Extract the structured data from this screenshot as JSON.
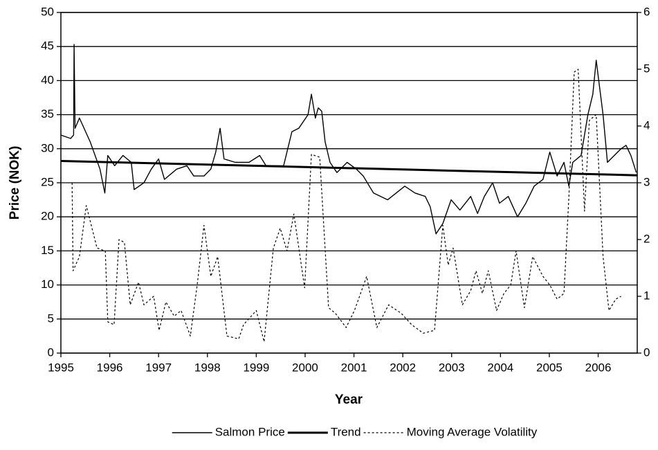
{
  "chart_data": {
    "type": "line",
    "x_label": "Year",
    "y_label": "Price (NOK)",
    "xlim": [
      1995,
      2006.8
    ],
    "xticks": [
      1995,
      1996,
      1997,
      1998,
      1999,
      2000,
      2001,
      2002,
      2003,
      2004,
      2005,
      2006
    ],
    "ylim": [
      0,
      50
    ],
    "yticks": [
      0,
      5,
      10,
      15,
      20,
      25,
      30,
      35,
      40,
      45,
      50
    ],
    "y2lim": [
      0,
      6
    ],
    "y2ticks": [
      0,
      1,
      2,
      3,
      4,
      5,
      6
    ],
    "grid": true,
    "legend": "bottom",
    "series": [
      {
        "name": "Salmon Price",
        "color": "#000000",
        "style": "solid",
        "x": [
          1995,
          1995.2,
          1995.26,
          1995.27,
          1995.29,
          1995.38,
          1995.6,
          1995.8,
          1995.9,
          1995.96,
          1996.1,
          1996.27,
          1996.44,
          1996.5,
          1996.7,
          1996.85,
          1997.0,
          1997.12,
          1997.37,
          1997.58,
          1997.72,
          1997.93,
          1998.07,
          1998.17,
          1998.26,
          1998.34,
          1998.57,
          1998.85,
          1999.07,
          1999.2,
          1999.56,
          1999.73,
          1999.87,
          2000.06,
          2000.13,
          2000.21,
          2000.27,
          2000.34,
          2000.41,
          2000.51,
          2000.65,
          2000.86,
          2001.05,
          2001.19,
          2001.4,
          2001.69,
          2002.04,
          2002.25,
          2002.46,
          2002.56,
          2002.68,
          2002.82,
          2002.99,
          2003.17,
          2003.39,
          2003.53,
          2003.67,
          2003.84,
          2003.98,
          2004.16,
          2004.35,
          2004.52,
          2004.69,
          2004.87,
          2005.01,
          2005.16,
          2005.3,
          2005.4,
          2005.48,
          2005.65,
          2005.79,
          2005.89,
          2005.96,
          2006.03,
          2006.1,
          2006.19,
          2006.33,
          2006.47,
          2006.57,
          2006.67,
          2006.78
        ],
        "values": [
          32,
          31.5,
          32,
          45.3,
          33,
          34.5,
          31,
          27,
          23.5,
          29,
          27.5,
          29,
          28,
          24,
          25,
          27,
          28.5,
          25.5,
          27,
          27.5,
          26,
          26,
          27,
          29.5,
          33,
          28.5,
          28,
          28,
          29,
          27.5,
          27.5,
          32.5,
          33,
          35,
          38,
          34.5,
          36,
          35.5,
          31,
          28,
          26.5,
          28,
          27,
          26,
          23.5,
          22.5,
          24.5,
          23.5,
          23,
          21.5,
          17.5,
          19,
          22.5,
          21,
          23,
          20.5,
          23,
          25,
          22,
          23,
          20,
          22,
          24.5,
          25.5,
          29.5,
          26,
          28,
          24.5,
          28,
          29,
          35,
          38,
          43,
          39,
          35,
          28,
          29,
          30,
          30.5,
          29,
          26.5
        ]
      },
      {
        "name": "Trend",
        "color": "#000000",
        "style": "thick",
        "x": [
          1995,
          2006.8
        ],
        "values": [
          28.2,
          26.1
        ]
      },
      {
        "name": "Moving Average Volatility",
        "color": "#000000",
        "style": "dashed",
        "axis": "y2",
        "x": [
          1995.23,
          1995.25,
          1995.38,
          1995.52,
          1995.74,
          1995.91,
          1995.96,
          1996.09,
          1996.19,
          1996.3,
          1996.42,
          1996.59,
          1996.7,
          1996.9,
          1997.01,
          1997.15,
          1997.32,
          1997.46,
          1997.65,
          1997.79,
          1997.93,
          1998.07,
          1998.21,
          1998.4,
          1998.64,
          1998.74,
          1999.0,
          1999.16,
          1999.35,
          1999.49,
          1999.63,
          1999.77,
          1999.99,
          2000.13,
          2000.3,
          2000.48,
          2000.62,
          2000.84,
          2001.01,
          2001.26,
          2001.47,
          2001.71,
          2001.97,
          2002.18,
          2002.42,
          2002.65,
          2002.82,
          2002.93,
          2003.03,
          2003.22,
          2003.39,
          2003.5,
          2003.63,
          2003.75,
          2003.92,
          2004.07,
          2004.21,
          2004.32,
          2004.49,
          2004.66,
          2004.87,
          2005.01,
          2005.16,
          2005.3,
          2005.4,
          2005.51,
          2005.59,
          2005.72,
          2005.82,
          2005.96,
          2006.1,
          2006.22,
          2006.36,
          2006.47
        ],
        "values": [
          3.0,
          1.45,
          1.7,
          2.6,
          1.85,
          1.8,
          0.55,
          0.5,
          2.0,
          1.95,
          0.85,
          1.25,
          0.85,
          1.0,
          0.4,
          0.9,
          0.65,
          0.75,
          0.3,
          1.2,
          2.25,
          1.35,
          1.7,
          0.3,
          0.25,
          0.5,
          0.75,
          0.2,
          1.85,
          2.2,
          1.8,
          2.45,
          1.15,
          3.5,
          3.45,
          0.8,
          0.7,
          0.45,
          0.75,
          1.35,
          0.45,
          0.85,
          0.7,
          0.5,
          0.35,
          0.4,
          2.25,
          1.55,
          1.85,
          0.85,
          1.1,
          1.45,
          1.05,
          1.45,
          0.75,
          1.05,
          1.2,
          1.8,
          0.8,
          1.7,
          1.35,
          1.2,
          0.95,
          1.05,
          2.75,
          4.95,
          5.0,
          2.5,
          4.1,
          4.2,
          1.7,
          0.75,
          0.95,
          1.0
        ]
      }
    ]
  }
}
